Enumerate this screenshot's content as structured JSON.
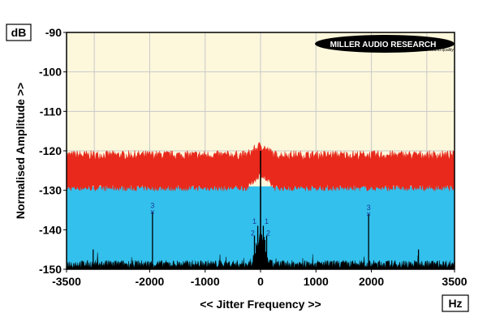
{
  "chart_data": {
    "type": "line",
    "title": "",
    "xlabel": "<< Jitter Frequency >>",
    "ylabel": "Normalised Amplitude >>",
    "y_unit": "dB",
    "x_unit": "Hz",
    "xlim": [
      -3500,
      3500
    ],
    "ylim": [
      -150,
      -90
    ],
    "x_ticks": [
      -3500,
      -2000,
      -1000,
      0,
      1000,
      2000,
      3500
    ],
    "y_ticks": [
      -90,
      -100,
      -110,
      -120,
      -130,
      -140,
      -150
    ],
    "grid": true,
    "series": [
      {
        "name": "",
        "color": "#e8291c",
        "noise_floor_db": [
          -130,
          -122
        ],
        "peak": {
          "x": 0,
          "y": -118
        }
      },
      {
        "name": "",
        "color": "#33c0ec",
        "fill_to_db": -129
      },
      {
        "name": "",
        "color": "#000000",
        "noise_floor_db": [
          -150,
          -148
        ],
        "spikes": [
          {
            "x": -1950,
            "y": -135.5
          },
          {
            "x": 1950,
            "y": -136
          },
          {
            "x": -110,
            "y": -141.5
          },
          {
            "x": 110,
            "y": -141.5
          },
          {
            "x": -50,
            "y": -139
          },
          {
            "x": 50,
            "y": -139
          },
          {
            "x": -3020,
            "y": -145
          },
          {
            "x": 2850,
            "y": -145
          },
          {
            "x": 0,
            "y": -120
          }
        ]
      }
    ],
    "annotations": [
      {
        "text": "3",
        "x": -1950,
        "y": -135.5
      },
      {
        "text": "3",
        "x": 1950,
        "y": -136
      },
      {
        "text": "1",
        "x": -110,
        "y": -138.5
      },
      {
        "text": "1",
        "x": 110,
        "y": -138.5
      },
      {
        "text": "2",
        "x": -140,
        "y": -141.5
      },
      {
        "text": "2",
        "x": 140,
        "y": -141.5
      }
    ],
    "logo": {
      "name": "MILLER AUDIO RESEARCH",
      "tagline": "Getting the measure of sound quality"
    }
  }
}
